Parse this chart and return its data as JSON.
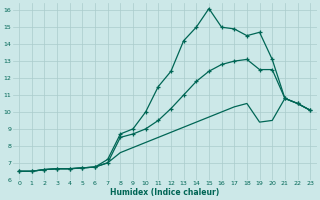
{
  "xlabel": "Humidex (Indice chaleur)",
  "bg_color": "#cce8e8",
  "grid_color": "#aacccc",
  "line_color": "#006655",
  "xlim": [
    -0.5,
    23.5
  ],
  "ylim": [
    6,
    16.4
  ],
  "xtick_labels": [
    "0",
    "1",
    "2",
    "3",
    "4",
    "5",
    "6",
    "7",
    "8",
    "9",
    "10",
    "11",
    "12",
    "13",
    "14",
    "15",
    "16",
    "17",
    "18",
    "19",
    "20",
    "21",
    "22",
    "23"
  ],
  "ytick_labels": [
    "6",
    "7",
    "8",
    "9",
    "10",
    "11",
    "12",
    "13",
    "14",
    "15",
    "16"
  ],
  "line1_x": [
    0,
    1,
    2,
    3,
    4,
    5,
    6,
    7,
    8,
    9,
    10,
    11,
    12,
    13,
    14,
    15,
    16,
    17,
    18,
    19,
    20,
    21,
    22,
    23
  ],
  "line1_y": [
    6.5,
    6.5,
    6.6,
    6.65,
    6.65,
    6.7,
    6.75,
    7.2,
    8.7,
    9.0,
    10.0,
    11.5,
    12.4,
    14.2,
    15.0,
    16.1,
    15.0,
    14.9,
    14.5,
    14.7,
    13.1,
    10.8,
    10.5,
    10.1
  ],
  "line2_x": [
    0,
    1,
    2,
    3,
    4,
    5,
    6,
    7,
    8,
    9,
    10,
    11,
    12,
    13,
    14,
    15,
    16,
    17,
    18,
    19,
    20,
    21,
    22,
    23
  ],
  "line2_y": [
    6.5,
    6.5,
    6.6,
    6.65,
    6.65,
    6.7,
    6.75,
    7.0,
    8.5,
    8.7,
    9.0,
    9.5,
    10.2,
    11.0,
    11.8,
    12.4,
    12.8,
    13.0,
    13.1,
    12.5,
    12.5,
    10.8,
    10.5,
    10.1
  ],
  "line3_x": [
    0,
    1,
    2,
    3,
    4,
    5,
    6,
    7,
    8,
    9,
    10,
    11,
    12,
    13,
    14,
    15,
    16,
    17,
    18,
    19,
    20,
    21,
    22,
    23
  ],
  "line3_y": [
    6.5,
    6.5,
    6.6,
    6.65,
    6.65,
    6.7,
    6.75,
    7.0,
    7.6,
    7.9,
    8.2,
    8.5,
    8.8,
    9.1,
    9.4,
    9.7,
    10.0,
    10.3,
    10.5,
    9.4,
    9.5,
    10.8,
    10.5,
    10.1
  ]
}
